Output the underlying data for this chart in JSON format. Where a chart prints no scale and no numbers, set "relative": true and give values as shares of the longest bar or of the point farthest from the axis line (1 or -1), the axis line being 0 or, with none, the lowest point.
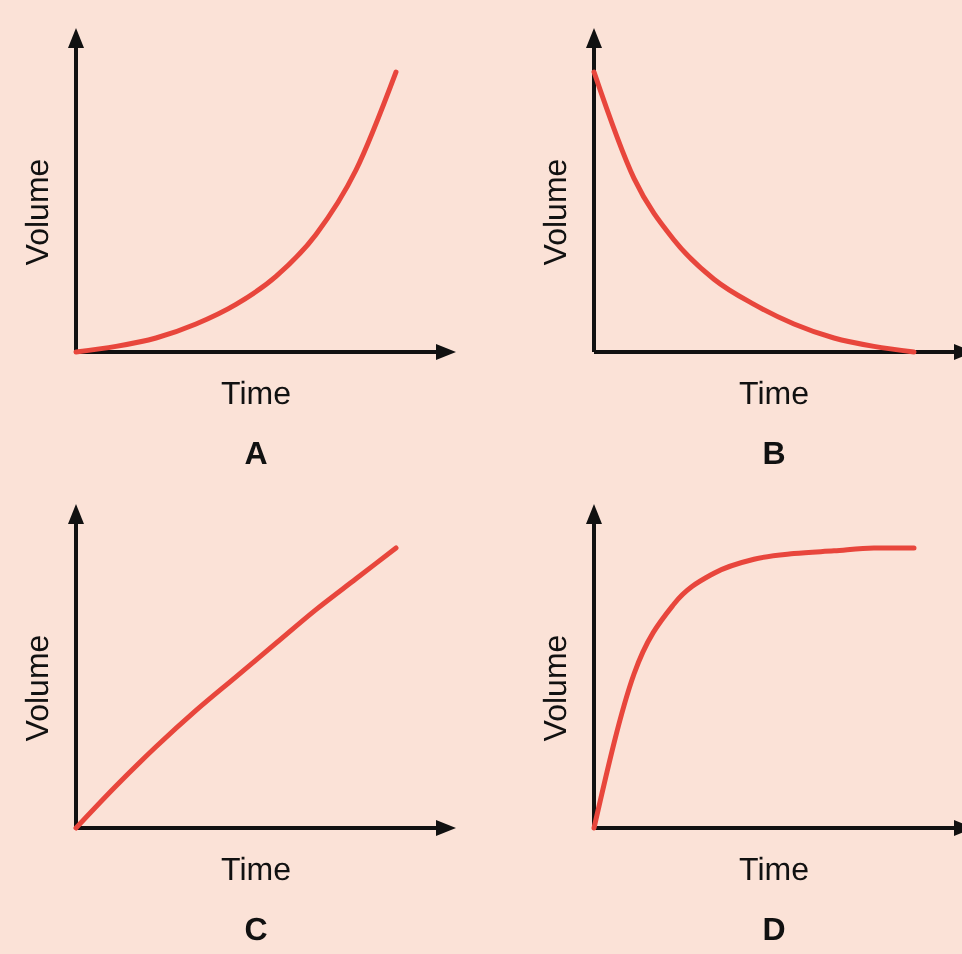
{
  "chart_data": [
    {
      "type": "line",
      "title": "A",
      "xlabel": "Time",
      "ylabel": "Volume",
      "relative": true,
      "line_style": "solid",
      "categories": [
        null,
        null,
        null,
        null,
        null,
        null,
        null,
        null,
        null
      ],
      "series": [
        {
          "color": "#e8463c",
          "values": [
            0,
            0.02,
            0.05,
            0.1,
            0.17,
            0.27,
            0.42,
            0.65,
            1
          ]
        }
      ]
    },
    {
      "type": "line",
      "title": "B",
      "xlabel": "Time",
      "ylabel": "Volume",
      "relative": true,
      "line_style": "solid",
      "categories": [
        null,
        null,
        null,
        null,
        null,
        null,
        null,
        null,
        null
      ],
      "series": [
        {
          "color": "#e8463c",
          "values": [
            1,
            0.62,
            0.4,
            0.26,
            0.17,
            0.1,
            0.05,
            0.02,
            0
          ]
        }
      ]
    },
    {
      "type": "line",
      "title": "C",
      "xlabel": "Time",
      "relative": true,
      "ylabel": "Volume",
      "line_style": "solid",
      "categories": [
        null,
        null,
        null,
        null,
        null,
        null,
        null,
        null,
        null
      ],
      "series": [
        {
          "color": "#e8463c",
          "values": [
            0,
            0.15,
            0.29,
            0.42,
            0.54,
            0.66,
            0.78,
            0.89,
            1
          ]
        }
      ]
    },
    {
      "type": "line",
      "title": "D",
      "xlabel": "Time",
      "ylabel": "Volume",
      "relative": true,
      "line_style": "solid",
      "categories": [
        null,
        null,
        null,
        null,
        null,
        null,
        null,
        null,
        null
      ],
      "series": [
        {
          "color": "#e8463c",
          "values": [
            0,
            0.55,
            0.8,
            0.91,
            0.96,
            0.98,
            0.99,
            1,
            1
          ]
        }
      ]
    }
  ]
}
